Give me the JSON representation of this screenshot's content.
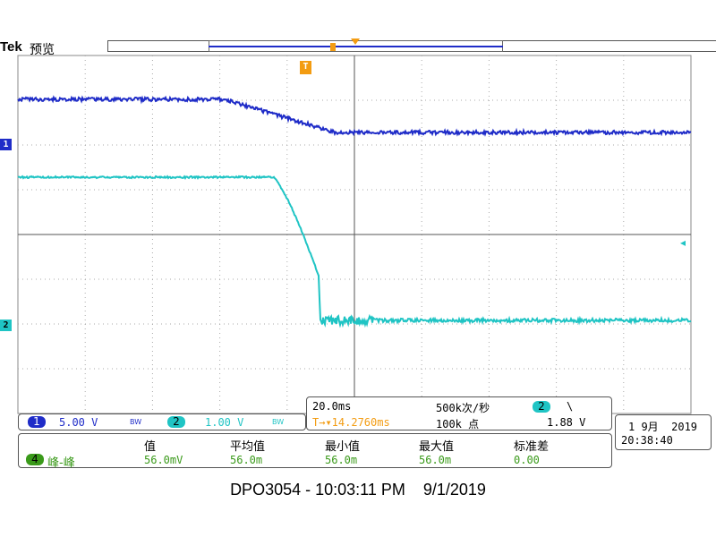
{
  "header": {
    "brand": "Tek",
    "mode": "预览"
  },
  "markers": {
    "ch1": "1",
    "ch2": "2",
    "trigger": "T"
  },
  "channels": [
    {
      "num": "1",
      "scale": "5.00 V",
      "bw": "BW",
      "color": "#1f2cc8"
    },
    {
      "num": "2",
      "scale": "1.00 V",
      "bw": "BW",
      "color": "#1fc4c4"
    }
  ],
  "timebase": {
    "per_div": "20.0ms",
    "sample_rate": "500k次/秒",
    "trigger_pos": "T→▾14.2760ms",
    "record": "100k 点",
    "trigger_channel": "2",
    "trigger_slope": "\\",
    "trigger_level": "1.88 V"
  },
  "datetime": {
    "date": "1 9月  2019",
    "time": "20:38:40"
  },
  "measurements": {
    "headers": [
      "值",
      "平均值",
      "最小值",
      "最大值",
      "标准差"
    ],
    "source": "4",
    "name": "峰-峰",
    "values": [
      "56.0mV",
      "56.0m",
      "56.0m",
      "56.0m",
      "0.00"
    ]
  },
  "footer": "DPO3054 - 10:03:11 PM    9/1/2019",
  "colors": {
    "ch1": "#1f2cc8",
    "ch2": "#1fc4c4",
    "trigger": "#f39c12",
    "math": "#3a9a1a"
  }
}
